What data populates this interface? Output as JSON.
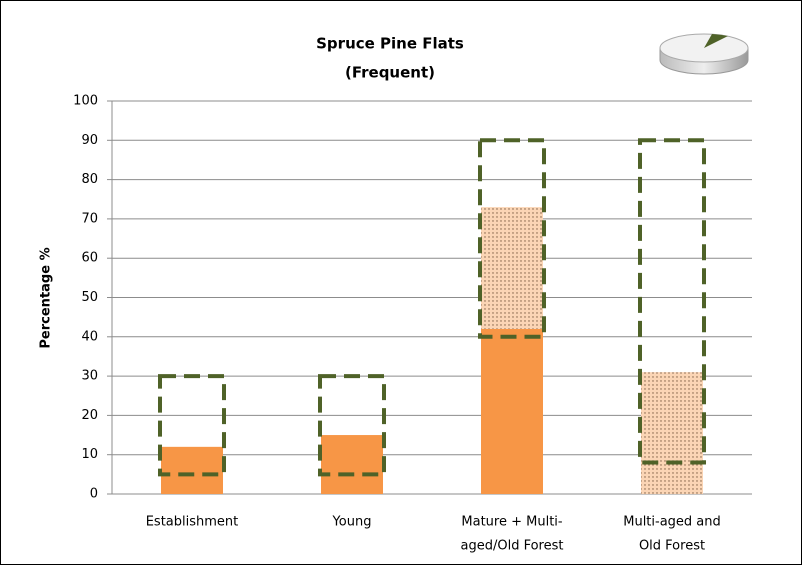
{
  "chart_data": {
    "type": "bar",
    "title": [
      "Spruce Pine Flats",
      "(Frequent)"
    ],
    "ylabel": "Percentage %",
    "categories": [
      [
        "Establishment"
      ],
      [
        "Young"
      ],
      [
        "Mature + Multi-",
        "aged/Old Forest"
      ],
      [
        "Multi-aged and",
        "Old Forest"
      ]
    ],
    "series": [
      {
        "color": "#f79646",
        "pattern": "solid",
        "values": [
          12,
          15,
          42,
          0
        ]
      },
      {
        "color": "#fbd5b5",
        "pattern": "dotted",
        "values": [
          0,
          0,
          31,
          31
        ]
      }
    ],
    "ranges": {
      "color": "#4f6228",
      "low": [
        5,
        5,
        40,
        8
      ],
      "high": [
        30,
        30,
        90,
        90
      ]
    },
    "stacked": true,
    "ylim": [
      0,
      100
    ],
    "yticks": [
      0,
      10,
      20,
      30,
      40,
      50,
      60,
      70,
      80,
      90,
      100
    ],
    "grid": true
  }
}
